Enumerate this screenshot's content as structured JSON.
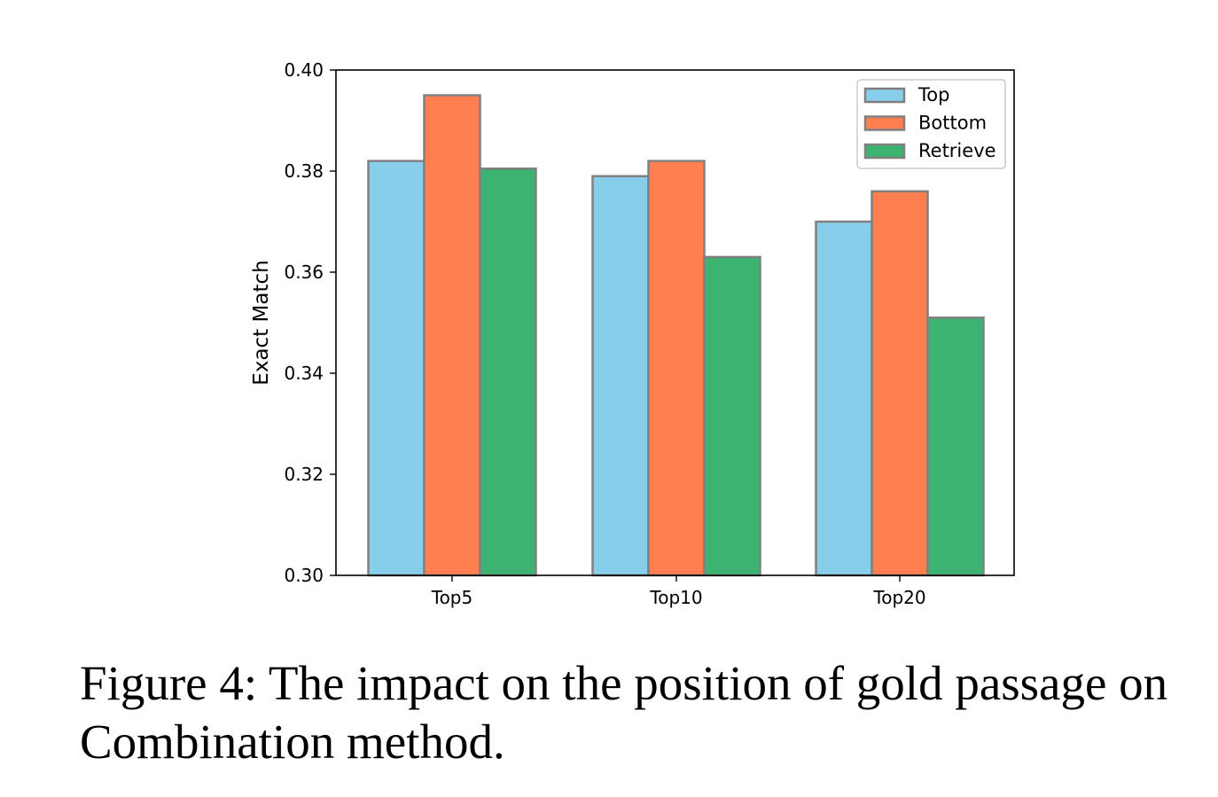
{
  "caption": "Figure 4: The impact on the position of gold passage on Combination method.",
  "chart_data": {
    "type": "bar",
    "title": "",
    "xlabel": "",
    "ylabel": "Exact Match",
    "categories": [
      "Top5",
      "Top10",
      "Top20"
    ],
    "ylim": [
      0.3,
      0.4
    ],
    "yticks": [
      "0.30",
      "0.32",
      "0.34",
      "0.36",
      "0.38",
      "0.40"
    ],
    "grid": false,
    "legend_position": "top-right",
    "bar_edge_color": "#808080",
    "series": [
      {
        "name": "Top",
        "color": "#87CEEB",
        "values": [
          0.382,
          0.379,
          0.37
        ]
      },
      {
        "name": "Bottom",
        "color": "#FF7F50",
        "values": [
          0.395,
          0.382,
          0.376
        ]
      },
      {
        "name": "Retrieve",
        "color": "#3CB371",
        "values": [
          0.3805,
          0.363,
          0.351
        ]
      }
    ]
  }
}
